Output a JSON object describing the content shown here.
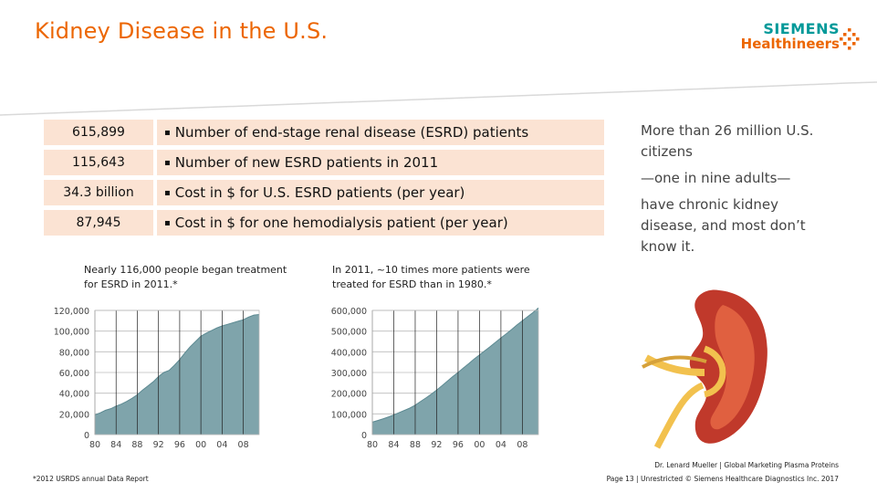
{
  "slide": {
    "title": "Kidney Disease in the U.S.",
    "accent_color": "#ec6602",
    "stat_fill_color": "#fbe3d3",
    "chart_fill_color": "#7fa4ab"
  },
  "logo": {
    "line1": "SIEMENS",
    "line2": "Healthineers",
    "icon": "dot-grid-icon"
  },
  "stats": [
    {
      "value": "615,899",
      "description": "Number of end-stage renal disease (ESRD) patients"
    },
    {
      "value": "115,643",
      "description": "Number of new ESRD patients in 2011"
    },
    {
      "value": "34.3 billion",
      "description": "Cost in $ for U.S. ESRD patients (per year)"
    },
    {
      "value": "87,945",
      "description": "Cost in $ for one hemodialysis patient (per year)"
    }
  ],
  "callout": {
    "line1": "More than 26 million U.S. citizens",
    "line2": "—one in nine adults—",
    "line3": "have chronic kidney disease, and most don’t know it."
  },
  "kidney_image": {
    "icon": "kidney-illustration"
  },
  "chart_data": [
    {
      "type": "area",
      "title": "Nearly 116,000 people began treatment for ESRD in 2011.*",
      "categories": [
        "80",
        "84",
        "88",
        "92",
        "96",
        "00",
        "04",
        "08"
      ],
      "x": [
        1980,
        1981,
        1982,
        1983,
        1984,
        1985,
        1986,
        1987,
        1988,
        1989,
        1990,
        1991,
        1992,
        1993,
        1994,
        1995,
        1996,
        1997,
        1998,
        1999,
        2000,
        2001,
        2002,
        2003,
        2004,
        2005,
        2006,
        2007,
        2008,
        2009,
        2010,
        2011
      ],
      "values": [
        19000,
        21000,
        23500,
        25000,
        27500,
        29500,
        32000,
        35000,
        38500,
        43000,
        47000,
        51000,
        56000,
        60000,
        62000,
        67000,
        72500,
        79000,
        85000,
        90000,
        95000,
        98000,
        100500,
        103000,
        105000,
        106500,
        108000,
        109500,
        111000,
        113500,
        115500,
        116000
      ],
      "yticks": [
        "120,000",
        "100,000",
        "80,000",
        "60,000",
        "40,000",
        "20,000",
        "0"
      ],
      "ylim": [
        0,
        120000
      ],
      "grid": true
    },
    {
      "type": "area",
      "title": "In 2011, ~10 times more patients were treated for ESRD than in 1980.*",
      "categories": [
        "80",
        "84",
        "88",
        "92",
        "96",
        "00",
        "04",
        "08"
      ],
      "x": [
        1980,
        1981,
        1982,
        1983,
        1984,
        1985,
        1986,
        1987,
        1988,
        1989,
        1990,
        1991,
        1992,
        1993,
        1994,
        1995,
        1996,
        1997,
        1998,
        1999,
        2000,
        2001,
        2002,
        2003,
        2004,
        2005,
        2006,
        2007,
        2008,
        2009,
        2010,
        2011
      ],
      "values": [
        60000,
        68000,
        76000,
        85000,
        95000,
        106000,
        117000,
        128000,
        142000,
        160000,
        177000,
        195000,
        215000,
        236000,
        258000,
        280000,
        300000,
        322000,
        343000,
        365000,
        385000,
        405000,
        425000,
        446000,
        467000,
        487000,
        508000,
        530000,
        550000,
        570000,
        590000,
        612000
      ],
      "yticks": [
        "600,000",
        "500,000",
        "400,000",
        "300,000",
        "200,000",
        "100,000",
        "0"
      ],
      "ylim": [
        0,
        600000
      ],
      "grid": true
    }
  ],
  "footer": {
    "source": "*2012 USRDS annual Data Report",
    "author": "Dr. Lenard Mueller | Global Marketing Plasma Proteins",
    "page": "Page 13 | Unrestricted © Siemens Healthcare Diagnostics Inc. 2017"
  }
}
